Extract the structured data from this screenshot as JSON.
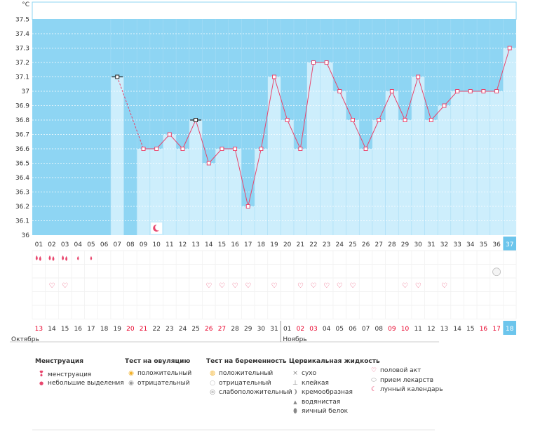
{
  "chart_data": {
    "type": "bar+line",
    "unit": "°C",
    "ylim": [
      36,
      37.5
    ],
    "yticks": [
      "37.5",
      "37.4",
      "37.3",
      "37.2",
      "37.1",
      "37",
      "36.9",
      "36.8",
      "36.7",
      "36.6",
      "36.5",
      "36.4",
      "36.3",
      "36.2",
      "36.1",
      "36"
    ],
    "cycle_days": [
      "01",
      "02",
      "03",
      "04",
      "05",
      "06",
      "07",
      "08",
      "09",
      "10",
      "11",
      "12",
      "13",
      "14",
      "15",
      "16",
      "17",
      "18",
      "19",
      "20",
      "21",
      "22",
      "23",
      "24",
      "25",
      "26",
      "27",
      "28",
      "29",
      "30",
      "31",
      "32",
      "33",
      "34",
      "35",
      "36",
      "37"
    ],
    "temperatures": [
      null,
      null,
      null,
      null,
      null,
      null,
      37.1,
      null,
      36.6,
      36.6,
      36.7,
      36.6,
      36.8,
      36.5,
      36.6,
      36.6,
      36.2,
      36.6,
      37.1,
      36.8,
      36.6,
      37.2,
      37.2,
      37.0,
      36.8,
      36.6,
      36.8,
      37.0,
      36.8,
      37.1,
      36.8,
      36.9,
      37.0,
      37.0,
      37.0,
      37.0,
      37.3
    ],
    "black_markers": [
      "07",
      "13"
    ],
    "current_day": "37",
    "menstruation_days": [
      "01",
      "02",
      "03",
      "04",
      "05"
    ],
    "heavy_menstruation_days": [
      "01",
      "02",
      "03"
    ],
    "light_menstruation_days": [
      "04",
      "05"
    ],
    "intercourse_days": [
      "02",
      "03",
      "14",
      "15",
      "16",
      "17",
      "19",
      "21",
      "22",
      "23",
      "24",
      "25",
      "29",
      "30",
      "32"
    ],
    "medication_days": [
      "36"
    ],
    "moon_days": [
      "10"
    ],
    "calendar_dates": [
      "13",
      "14",
      "15",
      "16",
      "17",
      "18",
      "19",
      "20",
      "21",
      "22",
      "23",
      "24",
      "25",
      "26",
      "27",
      "28",
      "29",
      "30",
      "31",
      "01",
      "02",
      "03",
      "04",
      "05",
      "06",
      "07",
      "08",
      "09",
      "10",
      "11",
      "12",
      "13",
      "14",
      "15",
      "16",
      "17",
      "18"
    ],
    "red_dates_idx": [
      0,
      7,
      8,
      13,
      14,
      20,
      21,
      27,
      28,
      34,
      35
    ],
    "month_labels": [
      "Октябрь",
      "Ноябрь"
    ],
    "month_start_idx": [
      0,
      19
    ]
  },
  "legend": {
    "menstruation": {
      "title": "Менструация",
      "items": [
        "менструация",
        "небольшие выделения"
      ]
    },
    "ovulation": {
      "title": "Тест на овуляцию",
      "items": [
        "положительный",
        "отрицательный"
      ]
    },
    "pregnancy": {
      "title": "Тест на беременность",
      "items": [
        "положительный",
        "отрицательный",
        "слабоположительный"
      ]
    },
    "fluid": {
      "title": "Цервикальная жидкость",
      "items": [
        "сухо",
        "клейкая",
        "кремообразная",
        "водянистая",
        "яичный белок"
      ]
    },
    "other": {
      "items": [
        "половой акт",
        "прием лекарств",
        "лунный календарь"
      ]
    }
  },
  "colors": {
    "high": "#8ed5f3",
    "bar": "#cdeefc",
    "line": "#e8466d",
    "current": "#6cc5ec",
    "red_text": "#e8002a"
  }
}
